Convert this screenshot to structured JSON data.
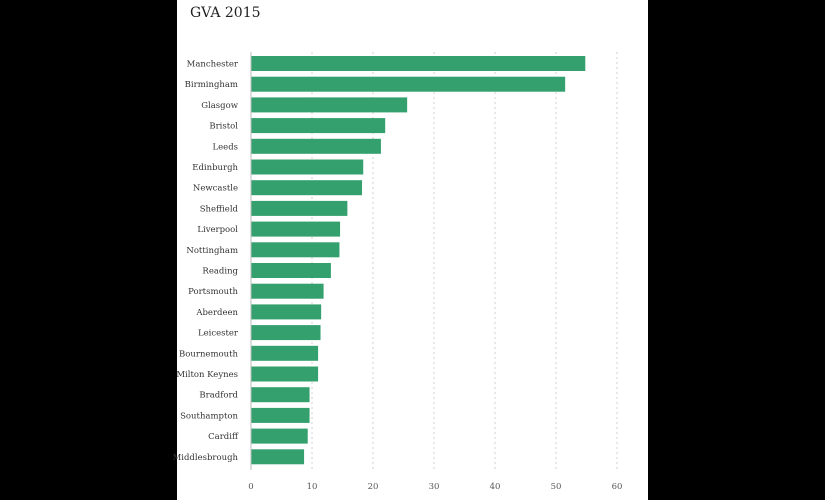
{
  "chart_data": {
    "type": "bar",
    "orientation": "horizontal",
    "title": "GVA 2015",
    "xlabel": "",
    "ylabel": "",
    "categories": [
      "Manchester",
      "Birmingham",
      "Glasgow",
      "Bristol",
      "Leeds",
      "Edinburgh",
      "Newcastle",
      "Sheffield",
      "Liverpool",
      "Nottingham",
      "Reading",
      "Portsmouth",
      "Aberdeen",
      "Leicester",
      "Bournemouth",
      "Milton Keynes",
      "Bradford",
      "Southampton",
      "Cardiff",
      "Middlesbrough"
    ],
    "values": [
      54.8,
      51.5,
      25.6,
      22.0,
      21.3,
      18.4,
      18.2,
      15.8,
      14.6,
      14.5,
      13.1,
      11.9,
      11.5,
      11.4,
      11.0,
      11.0,
      9.6,
      9.6,
      9.3,
      8.7
    ],
    "xlim": [
      0,
      60
    ],
    "xticks": [
      0,
      10,
      20,
      30,
      40,
      50,
      60
    ],
    "grid": true,
    "legend": "none",
    "bar_color": "#34a06e"
  }
}
